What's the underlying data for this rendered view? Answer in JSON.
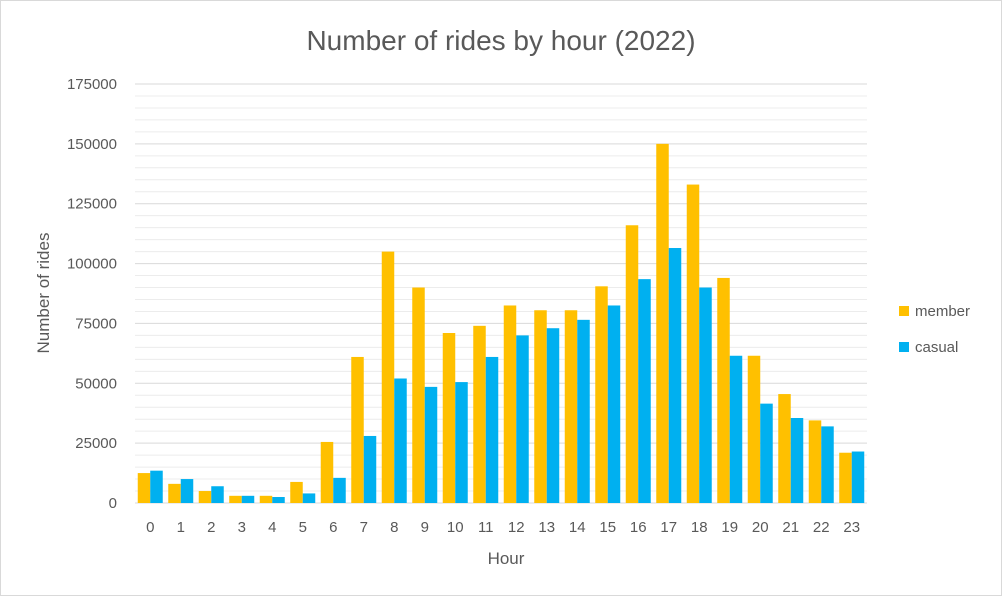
{
  "chart_data": {
    "type": "bar",
    "title": "Number of rides by hour (2022)",
    "xlabel": "Hour",
    "ylabel": "Number of rides",
    "categories": [
      "0",
      "1",
      "2",
      "3",
      "4",
      "5",
      "6",
      "7",
      "8",
      "9",
      "10",
      "11",
      "12",
      "13",
      "14",
      "15",
      "16",
      "17",
      "18",
      "19",
      "20",
      "21",
      "22",
      "23"
    ],
    "series": [
      {
        "name": "member",
        "color": "#FFC000",
        "values": [
          12500,
          8000,
          5000,
          3000,
          3000,
          8800,
          25500,
          61000,
          105000,
          90000,
          71000,
          74000,
          82500,
          80500,
          80500,
          90500,
          116000,
          150000,
          133000,
          94000,
          61500,
          45500,
          34500,
          21000
        ]
      },
      {
        "name": "casual",
        "color": "#00B0F0",
        "values": [
          13500,
          10000,
          7000,
          3000,
          2500,
          4000,
          10500,
          28000,
          52000,
          48500,
          50500,
          61000,
          70000,
          73000,
          76500,
          82500,
          93500,
          106500,
          90000,
          61500,
          41500,
          35500,
          32000,
          21500
        ]
      }
    ],
    "yticks": [
      "0",
      "25000",
      "50000",
      "75000",
      "100000",
      "125000",
      "150000",
      "175000"
    ],
    "ylim": [
      0,
      175000
    ],
    "major_tick_step": 25000,
    "minor_tick_step": 5000,
    "grid": true,
    "legend": "right"
  }
}
